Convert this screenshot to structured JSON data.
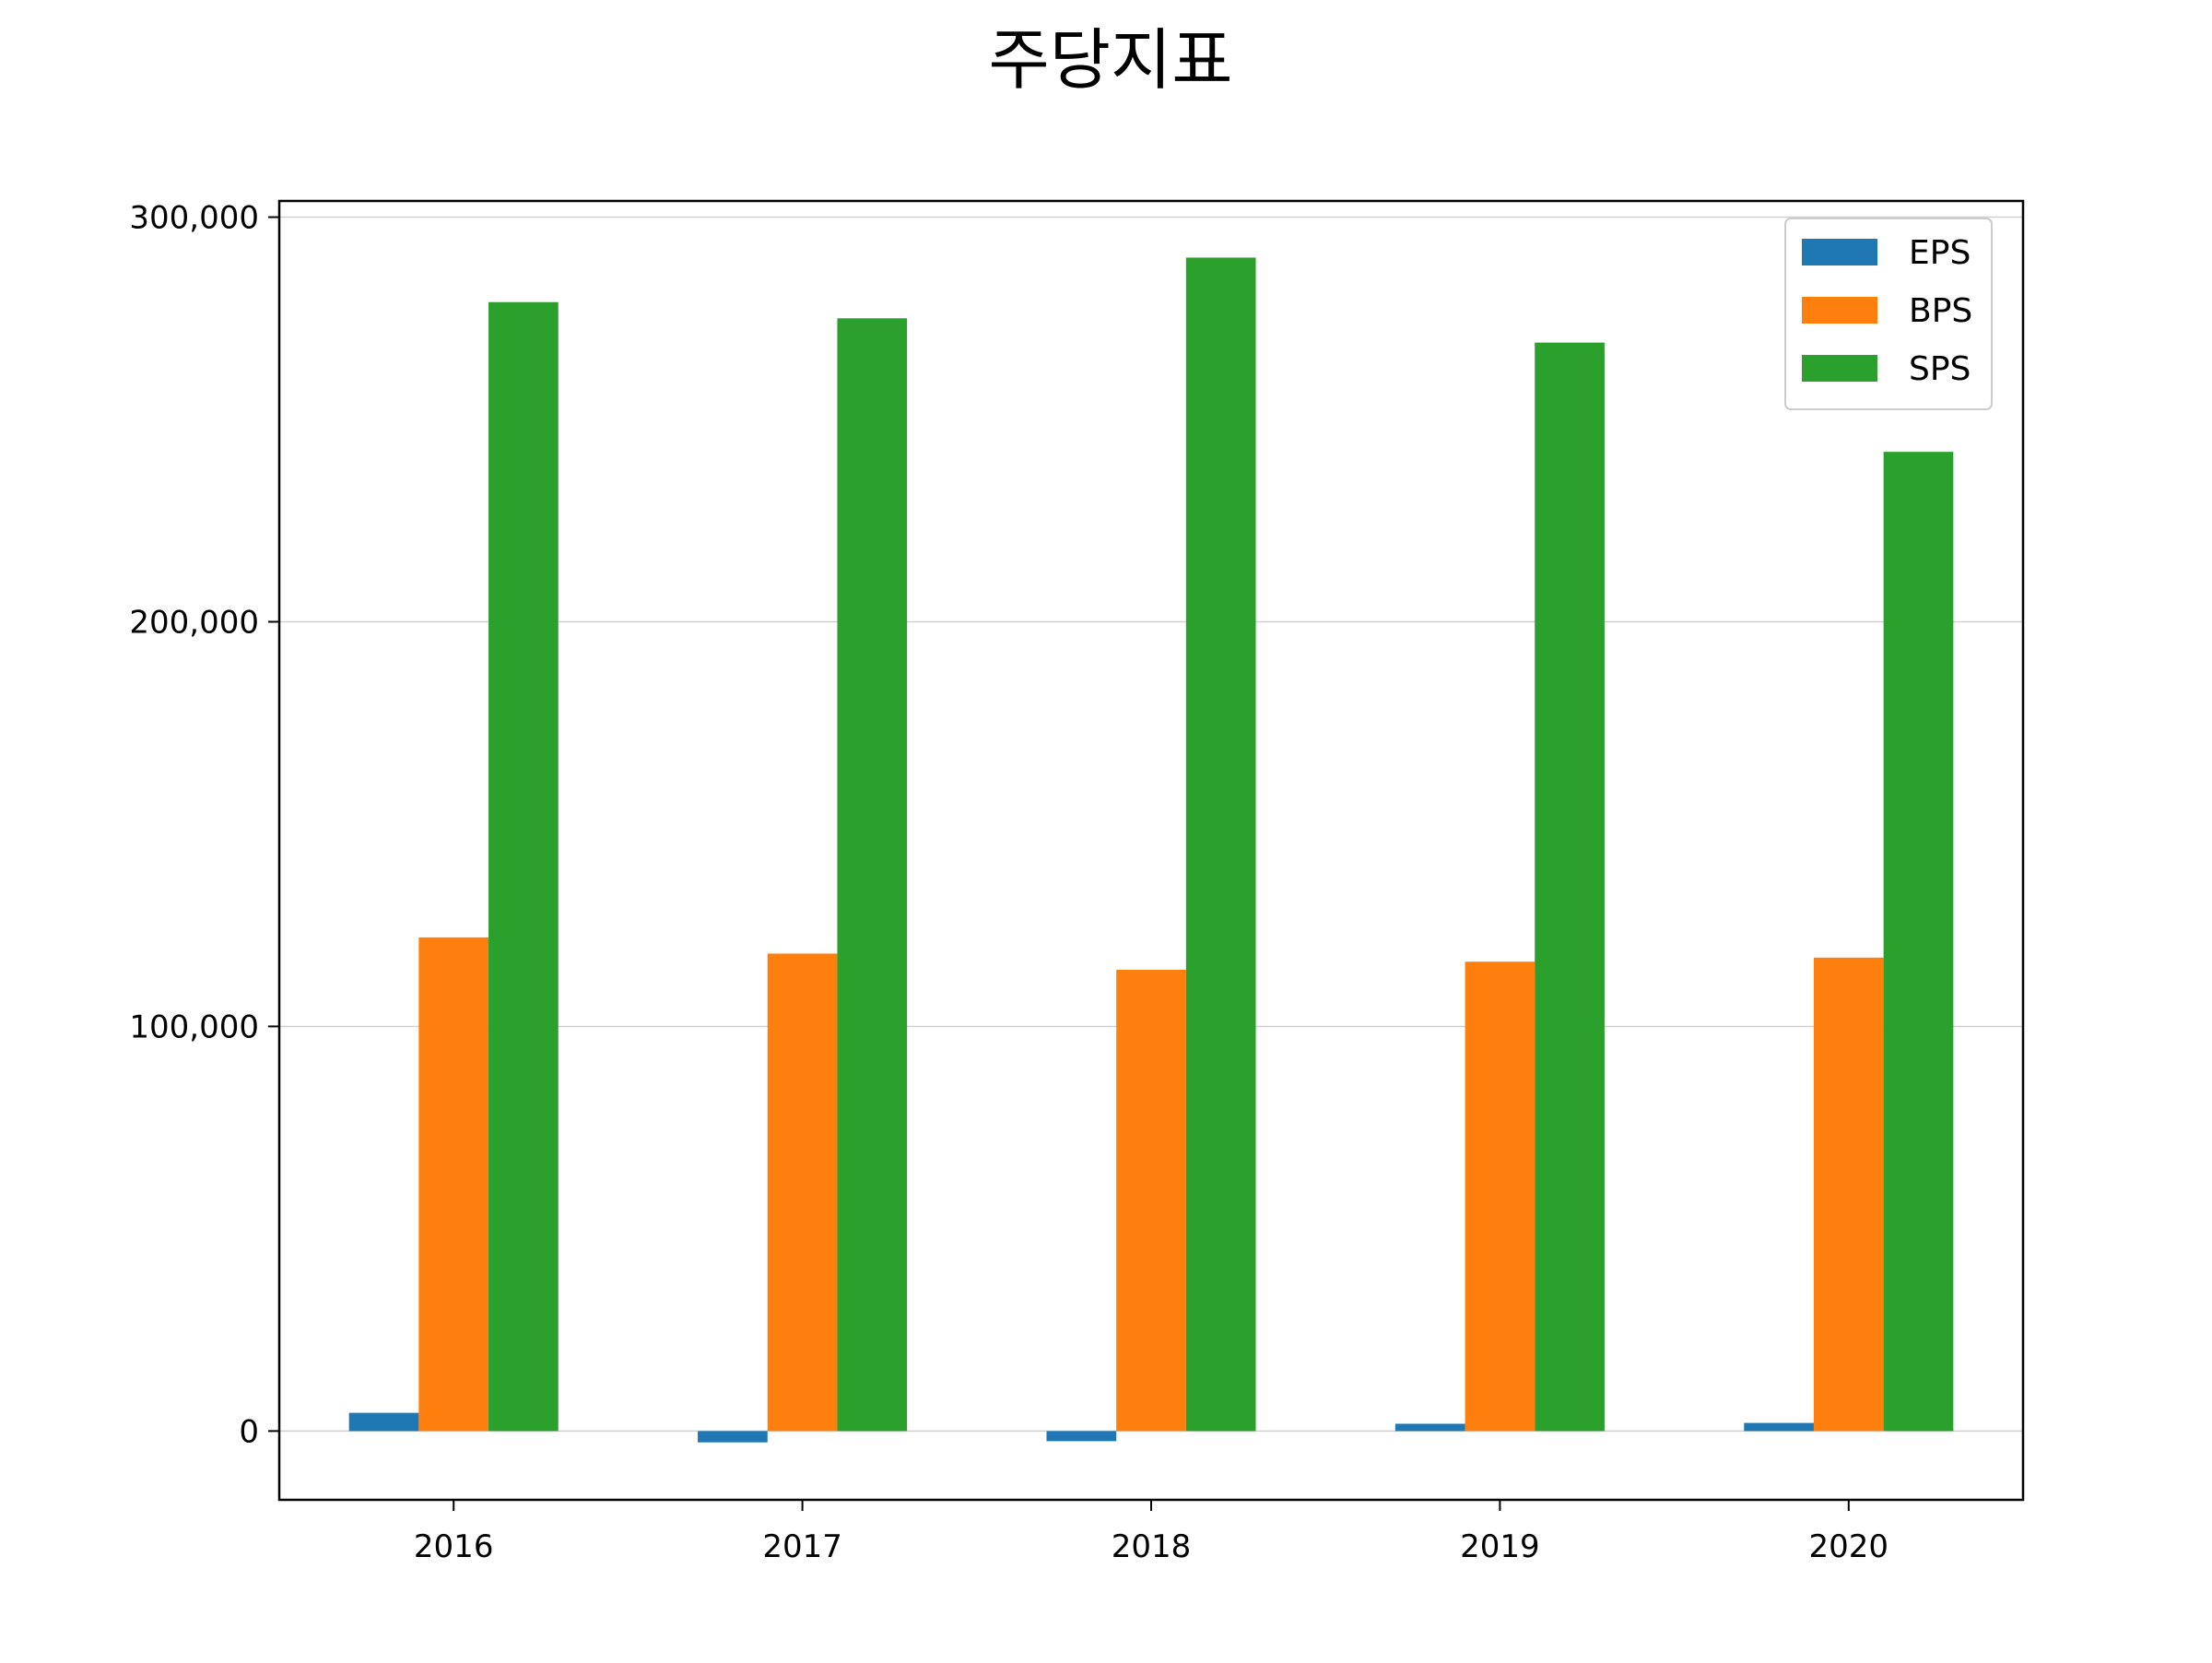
{
  "chart_data": {
    "type": "bar",
    "title": "주당지표",
    "xlabel": "",
    "ylabel": "",
    "categories": [
      "2016",
      "2017",
      "2018",
      "2019",
      "2020"
    ],
    "series": [
      {
        "name": "EPS",
        "color": "#1f77b4",
        "values": [
          4500,
          -2800,
          -2500,
          1800,
          2000
        ]
      },
      {
        "name": "BPS",
        "color": "#ff7f0e",
        "values": [
          122000,
          118000,
          114000,
          116000,
          117000
        ]
      },
      {
        "name": "SPS",
        "color": "#2ca02c",
        "values": [
          279000,
          275000,
          290000,
          269000,
          242000
        ]
      }
    ],
    "ylim": [
      -17000,
      304000
    ],
    "yticks": [
      0,
      100000,
      200000,
      300000
    ],
    "ytick_labels": [
      "0",
      "100,000",
      "200,000",
      "300,000"
    ],
    "grid": "horizontal",
    "legend_position": "top-right"
  }
}
